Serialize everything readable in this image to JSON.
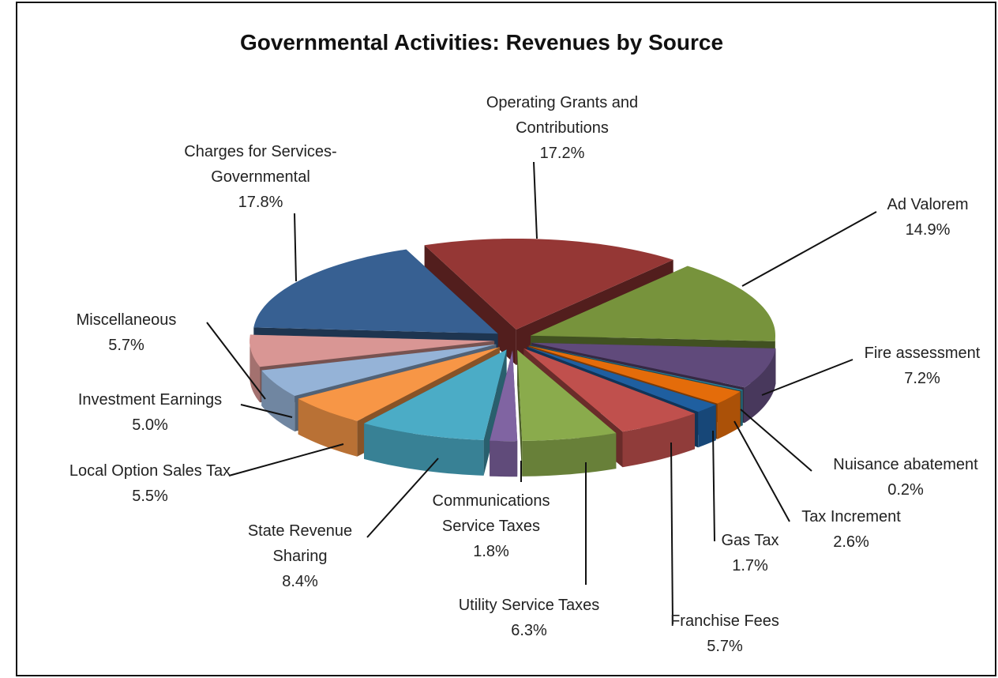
{
  "chart_data": {
    "type": "pie3d",
    "title": "Governmental Activities: Revenues by Source",
    "categories": [
      "Operating Grants and Contributions",
      "Ad Valorem",
      "Fire assessment",
      "Nuisance abatement",
      "Tax Increment",
      "Gas Tax",
      "Franchise Fees",
      "Utility Service Taxes",
      "Communications Service Taxes",
      "State Revenue Sharing",
      "Local Option Sales Tax",
      "Investment Earnings",
      "Miscellaneous",
      "Charges for Services-Governmental"
    ],
    "values": [
      17.2,
      14.9,
      7.2,
      0.2,
      2.6,
      1.7,
      5.7,
      6.3,
      1.8,
      8.4,
      5.5,
      5.0,
      5.7,
      17.8
    ],
    "value_labels": [
      "17.2%",
      "14.9%",
      "7.2%",
      "0.2%",
      "2.6%",
      "1.7%",
      "5.7%",
      "6.3%",
      "1.8%",
      "8.4%",
      "5.5%",
      "5.0%",
      "5.7%",
      "17.8%"
    ],
    "colors": [
      "#953735",
      "#77933c",
      "#604a7b",
      "#31859c",
      "#e46c0a",
      "#1f5fa0",
      "#c0504d",
      "#8aab4c",
      "#8064a2",
      "#4bacc6",
      "#f79646",
      "#95b3d7",
      "#d99694",
      "#376092"
    ]
  }
}
